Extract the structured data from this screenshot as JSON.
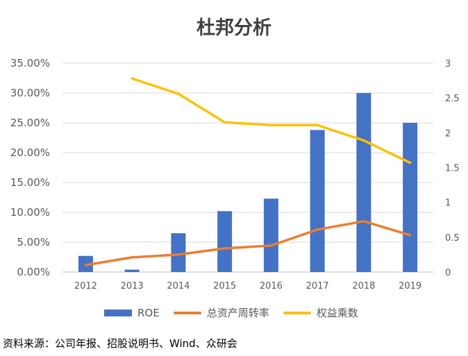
{
  "title": "杜邦分析",
  "source": "资料来源：公司年报、招股说明书、Wind、众研会",
  "colors": {
    "roe": "#4472C4",
    "turnover": "#ED7D31",
    "multiplier": "#FFC000"
  },
  "chart_data": {
    "type": "bar",
    "title": "杜邦分析",
    "categories": [
      "2012",
      "2013",
      "2014",
      "2015",
      "2016",
      "2017",
      "2018",
      "2019"
    ],
    "left_axis": {
      "ylim": [
        0,
        35
      ],
      "ticks": [
        "0.00%",
        "5.00%",
        "10.00%",
        "15.00%",
        "20.00%",
        "25.00%",
        "30.00%",
        "35.00%"
      ]
    },
    "right_axis": {
      "ylim": [
        0,
        3
      ],
      "ticks": [
        "0",
        "0.5",
        "1",
        "1.5",
        "2",
        "2.5",
        "3"
      ]
    },
    "series": [
      {
        "name": "ROE",
        "type": "bar",
        "axis": "left",
        "values": [
          2.7,
          0.4,
          6.5,
          10.2,
          12.3,
          23.8,
          30.0,
          25.0
        ]
      },
      {
        "name": "总资产周转率",
        "type": "line",
        "axis": "right",
        "values": [
          0.1,
          0.21,
          0.25,
          0.34,
          0.38,
          0.61,
          0.73,
          0.53
        ]
      },
      {
        "name": "权益乘数",
        "type": "line",
        "axis": "right",
        "values": [
          null,
          2.78,
          2.56,
          2.15,
          2.11,
          2.11,
          1.89,
          1.57
        ]
      }
    ],
    "grid": true,
    "legend": "bottom"
  }
}
